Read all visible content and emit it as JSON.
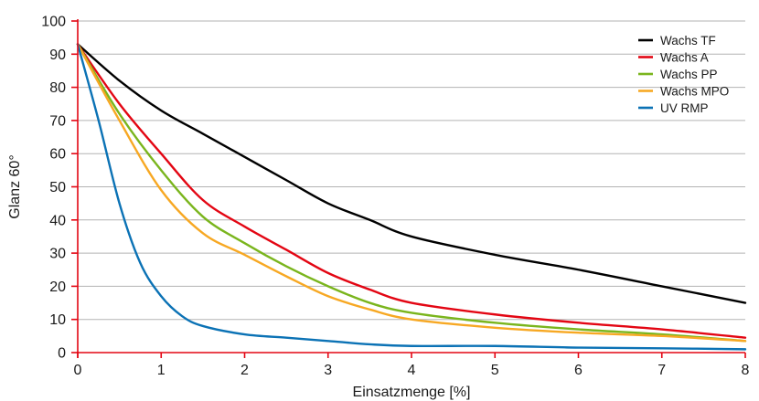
{
  "chart_data": {
    "type": "line",
    "xlabel": "Einsatzmenge [%]",
    "ylabel": "Glanz 60°",
    "xlim": [
      0,
      8
    ],
    "ylim": [
      0,
      100
    ],
    "x_ticks": [
      0,
      1,
      2,
      3,
      4,
      5,
      6,
      7,
      8
    ],
    "y_ticks": [
      0,
      10,
      20,
      30,
      40,
      50,
      60,
      70,
      80,
      90,
      100
    ],
    "grid": "horizontal",
    "legend_position": "top-right",
    "axis_color": "#e30613",
    "series": [
      {
        "name": "Wachs TF",
        "color": "#000000",
        "points": [
          [
            0,
            93
          ],
          [
            0.5,
            82
          ],
          [
            1,
            73
          ],
          [
            1.5,
            66
          ],
          [
            2,
            59
          ],
          [
            2.5,
            52
          ],
          [
            3,
            45
          ],
          [
            3.5,
            40
          ],
          [
            4,
            35
          ],
          [
            5,
            29.5
          ],
          [
            6,
            25
          ],
          [
            7,
            20
          ],
          [
            8,
            15
          ]
        ]
      },
      {
        "name": "Wachs A",
        "color": "#e30613",
        "points": [
          [
            0,
            93
          ],
          [
            0.5,
            75
          ],
          [
            1,
            60
          ],
          [
            1.5,
            46
          ],
          [
            2,
            38
          ],
          [
            2.5,
            31
          ],
          [
            3,
            24
          ],
          [
            3.5,
            19
          ],
          [
            4,
            15
          ],
          [
            5,
            11.5
          ],
          [
            6,
            9
          ],
          [
            7,
            7
          ],
          [
            8,
            4.5
          ]
        ]
      },
      {
        "name": "Wachs PP",
        "color": "#7ab51d",
        "points": [
          [
            0,
            93
          ],
          [
            0.5,
            72
          ],
          [
            1,
            55
          ],
          [
            1.5,
            41
          ],
          [
            2,
            33
          ],
          [
            2.5,
            26
          ],
          [
            3,
            20
          ],
          [
            3.5,
            15
          ],
          [
            4,
            12
          ],
          [
            5,
            9
          ],
          [
            6,
            7
          ],
          [
            7,
            5.5
          ],
          [
            8,
            3.5
          ]
        ]
      },
      {
        "name": "Wachs MPO",
        "color": "#f7a823",
        "points": [
          [
            0,
            93
          ],
          [
            0.5,
            70
          ],
          [
            1,
            49
          ],
          [
            1.5,
            36
          ],
          [
            2,
            29.5
          ],
          [
            2.5,
            23
          ],
          [
            3,
            17
          ],
          [
            3.5,
            13
          ],
          [
            4,
            10
          ],
          [
            5,
            7.5
          ],
          [
            6,
            6
          ],
          [
            7,
            5
          ],
          [
            8,
            3.5
          ]
        ]
      },
      {
        "name": "UV RMP",
        "color": "#0b72b5",
        "points": [
          [
            0,
            93
          ],
          [
            0.25,
            70
          ],
          [
            0.5,
            45
          ],
          [
            0.75,
            27
          ],
          [
            1,
            17
          ],
          [
            1.25,
            11
          ],
          [
            1.5,
            8
          ],
          [
            2,
            5.5
          ],
          [
            2.5,
            4.5
          ],
          [
            3,
            3.5
          ],
          [
            3.5,
            2.5
          ],
          [
            4,
            2
          ],
          [
            5,
            2
          ],
          [
            6,
            1.5
          ],
          [
            7,
            1.3
          ],
          [
            8,
            1
          ]
        ]
      }
    ]
  }
}
